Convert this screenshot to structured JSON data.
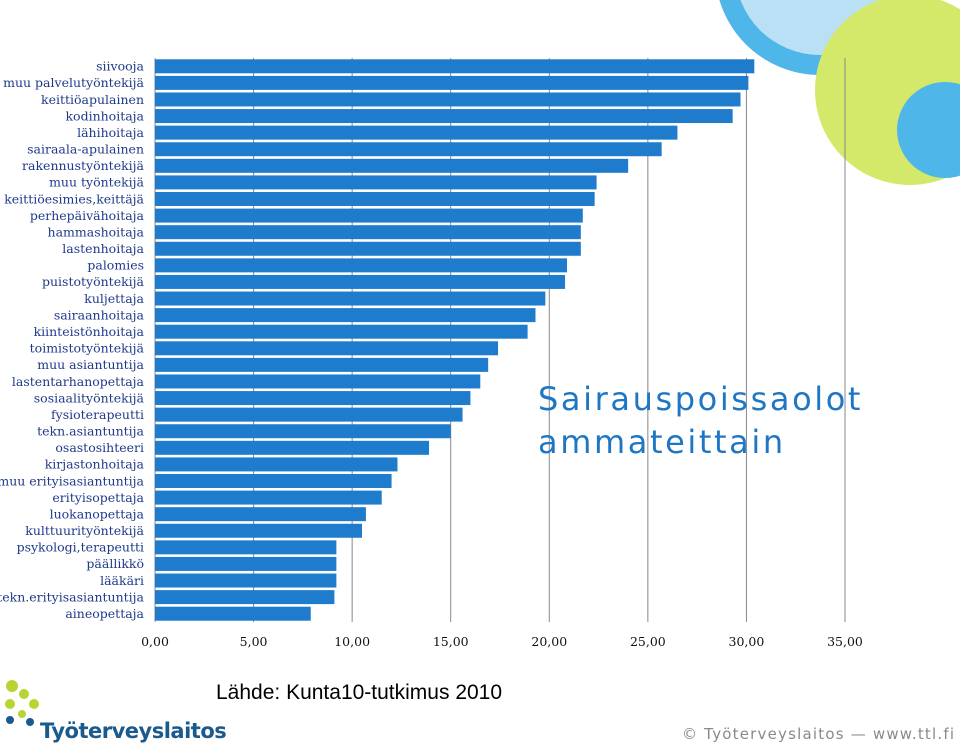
{
  "chart_data": {
    "type": "bar",
    "orientation": "horizontal",
    "title_lines": [
      "Sairauspoissaolot",
      "ammateittain"
    ],
    "categories": [
      "siivooja",
      "muu palvelutyöntekijä",
      "keittiöapulainen",
      "kodinhoitaja",
      "lähihoitaja",
      "sairaala-apulainen",
      "rakennustyöntekijä",
      "muu työntekijä",
      "keittiöesimies,keittäjä",
      "perhepäivähoitaja",
      "hammashoitaja",
      "lastenhoitaja",
      "palomies",
      "puistotyöntekijä",
      "kuljettaja",
      "sairaanhoitaja",
      "kiinteistönhoitaja",
      "toimistotyöntekijä",
      "muu asiantuntija",
      "lastentarhanopettaja",
      "sosiaalityöntekijä",
      "fysioterapeutti",
      "tekn.asiantuntija",
      "osastosihteeri",
      "kirjastonhoitaja",
      "muu erityisasiantuntija",
      "erityisopettaja",
      "luokanopettaja",
      "kulttuurityöntekijä",
      "psykologi,terapeutti",
      "päällikkö",
      "lääkäri",
      "tekn.erityisasiantuntija",
      "aineopettaja"
    ],
    "values": [
      30.4,
      30.1,
      29.7,
      29.3,
      26.5,
      25.7,
      24.0,
      22.4,
      22.3,
      21.7,
      21.6,
      21.6,
      20.9,
      20.8,
      19.8,
      19.3,
      18.9,
      17.4,
      16.9,
      16.5,
      16.0,
      15.6,
      15.0,
      13.9,
      12.3,
      12.0,
      11.5,
      10.7,
      10.5,
      9.2,
      9.2,
      9.2,
      9.1,
      7.9
    ],
    "xlim": [
      0,
      35
    ],
    "xticks": [
      "0,00",
      "5,00",
      "10,00",
      "15,00",
      "20,00",
      "25,00",
      "30,00",
      "35,00"
    ],
    "vertical_gridlines": true,
    "legend": "none",
    "bar_color": "#1f7ccc"
  },
  "source_text": "Lähde: Kunta10-tutkimus 2010",
  "footer_text": "© Työterveyslaitos — www.ttl.fi",
  "logo": {
    "name": "Työterveyslaitos",
    "icon": "ttl-logo-icon"
  },
  "colors": {
    "title": "#1f77c4",
    "decor_green": "#d4e96a",
    "decor_blue": "#4fb6ea",
    "decor_light_blue": "#cbe7f6"
  }
}
